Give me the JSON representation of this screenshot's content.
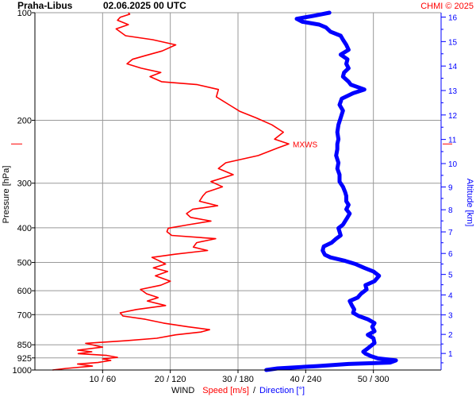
{
  "header": {
    "station": "Praha-Libus",
    "datetime": "02.06.2025 00 UTC",
    "credit": "CHMI © 2025"
  },
  "colors": {
    "speed": "#ff0000",
    "direction": "#0000ff",
    "grid": "#999999",
    "text": "#000000"
  },
  "chart_data": {
    "type": "line",
    "title": "Praha-Libus 02.06.2025 00 UTC",
    "ylabel": "Pressure [hPa]",
    "y2label": "Altitude [km]",
    "xlabel": {
      "prefix": "WIND",
      "speed": "Speed [m/s]",
      "separator": "/",
      "direction": "Direction [°]"
    },
    "y_scale": "log",
    "y_range": [
      1000,
      100
    ],
    "pressure_ticks": [
      "100",
      "200",
      "300",
      "400",
      "500",
      "600",
      "700",
      "850",
      "925",
      "1000"
    ],
    "x_range_speed": [
      0,
      60
    ],
    "x_range_direction": [
      0,
      360
    ],
    "x_ticks": [
      "10 / 60",
      "20 / 120",
      "30 / 180",
      "40 / 240",
      "50 / 300"
    ],
    "altitude_ticks": [
      "1",
      "2",
      "3",
      "4",
      "5",
      "6",
      "7",
      "8",
      "9",
      "10",
      "11",
      "12",
      "13",
      "14",
      "15",
      "16"
    ],
    "max_wind": {
      "label": "MXWS",
      "pressure": 233,
      "speed": 37.5
    },
    "series": [
      {
        "name": "Speed [m/s]",
        "unit": "m/s",
        "points": [
          [
            1000,
            2.6
          ],
          [
            990,
            4.6
          ],
          [
            975,
            8.5
          ],
          [
            962,
            6.3
          ],
          [
            953,
            9.3
          ],
          [
            940,
            11.2
          ],
          [
            931,
            10.0
          ],
          [
            922,
            12.2
          ],
          [
            910,
            10.6
          ],
          [
            900,
            6.4
          ],
          [
            889,
            8.4
          ],
          [
            880,
            6.3
          ],
          [
            863,
            10.0
          ],
          [
            842,
            7.5
          ],
          [
            828,
            13.5
          ],
          [
            815,
            18.0
          ],
          [
            797,
            20.8
          ],
          [
            783,
            24.5
          ],
          [
            771,
            25.8
          ],
          [
            757,
            22.6
          ],
          [
            739,
            19.0
          ],
          [
            721,
            16.3
          ],
          [
            706,
            13.0
          ],
          [
            692,
            12.6
          ],
          [
            677,
            15.0
          ],
          [
            660,
            19.3
          ],
          [
            641,
            16.6
          ],
          [
            627,
            18.2
          ],
          [
            612,
            16.5
          ],
          [
            595,
            15.6
          ],
          [
            579,
            18.6
          ],
          [
            564,
            20.0
          ],
          [
            545,
            17.8
          ],
          [
            530,
            19.6
          ],
          [
            518,
            17.5
          ],
          [
            505,
            19.3
          ],
          [
            495,
            18.4
          ],
          [
            484,
            17.3
          ],
          [
            474,
            20.8
          ],
          [
            463,
            25.5
          ],
          [
            453,
            23.4
          ],
          [
            440,
            23.9
          ],
          [
            429,
            26.7
          ],
          [
            420,
            20.2
          ],
          [
            410,
            19.5
          ],
          [
            401,
            19.7
          ],
          [
            392,
            22.7
          ],
          [
            383,
            26.0
          ],
          [
            374,
            23.0
          ],
          [
            365,
            22.4
          ],
          [
            355,
            23.3
          ],
          [
            347,
            27.0
          ],
          [
            337,
            24.3
          ],
          [
            326,
            24.8
          ],
          [
            318,
            25.3
          ],
          [
            307,
            27.7
          ],
          [
            297,
            26.0
          ],
          [
            284,
            29.3
          ],
          [
            273,
            27.1
          ],
          [
            263,
            28.2
          ],
          [
            251,
            33.0
          ],
          [
            239,
            35.9
          ],
          [
            233,
            37.5
          ],
          [
            226,
            35.4
          ],
          [
            216,
            36.7
          ],
          [
            206,
            35.0
          ],
          [
            197,
            32.7
          ],
          [
            189,
            30.3
          ],
          [
            181,
            28.7
          ],
          [
            172,
            26.8
          ],
          [
            164,
            27.1
          ],
          [
            159,
            24.0
          ],
          [
            156,
            18.7
          ],
          [
            151,
            17.0
          ],
          [
            147,
            18.6
          ],
          [
            143,
            15.7
          ],
          [
            139,
            13.6
          ],
          [
            135,
            14.4
          ],
          [
            132,
            16.2
          ],
          [
            128,
            18.8
          ],
          [
            123,
            20.8
          ],
          [
            119,
            17.4
          ],
          [
            116,
            13.4
          ],
          [
            111,
            12.0
          ],
          [
            108,
            13.8
          ],
          [
            105,
            12.2
          ],
          [
            103,
            12.6
          ],
          [
            101,
            14.0
          ],
          [
            100,
            13.8
          ]
        ]
      },
      {
        "name": "Direction [°]",
        "unit": "deg",
        "points": [
          [
            1000,
            205
          ],
          [
            990,
            215
          ],
          [
            975,
            250
          ],
          [
            962,
            278
          ],
          [
            953,
            315
          ],
          [
            940,
            320
          ],
          [
            928,
            304
          ],
          [
            915,
            298
          ],
          [
            900,
            293
          ],
          [
            889,
            291
          ],
          [
            875,
            294
          ],
          [
            860,
            297
          ],
          [
            840,
            301
          ],
          [
            815,
            300
          ],
          [
            797,
            295
          ],
          [
            779,
            301
          ],
          [
            757,
            299
          ],
          [
            739,
            301
          ],
          [
            721,
            295
          ],
          [
            706,
            287
          ],
          [
            692,
            282
          ],
          [
            677,
            283
          ],
          [
            660,
            281
          ],
          [
            641,
            279
          ],
          [
            627,
            286
          ],
          [
            612,
            289
          ],
          [
            595,
            294
          ],
          [
            579,
            293
          ],
          [
            564,
            301
          ],
          [
            545,
            305
          ],
          [
            530,
            300
          ],
          [
            518,
            292
          ],
          [
            505,
            284
          ],
          [
            495,
            275
          ],
          [
            484,
            262
          ],
          [
            476,
            257
          ],
          [
            463,
            255
          ],
          [
            451,
            256
          ],
          [
            440,
            263
          ],
          [
            429,
            267
          ],
          [
            420,
            271
          ],
          [
            410,
            270
          ],
          [
            401,
            269
          ],
          [
            392,
            273
          ],
          [
            383,
            275
          ],
          [
            374,
            277
          ],
          [
            365,
            279
          ],
          [
            355,
            276
          ],
          [
            345,
            278
          ],
          [
            337,
            276
          ],
          [
            326,
            276
          ],
          [
            318,
            275
          ],
          [
            307,
            273
          ],
          [
            297,
            270
          ],
          [
            284,
            270
          ],
          [
            273,
            268
          ],
          [
            263,
            269
          ],
          [
            251,
            267
          ],
          [
            241,
            268
          ],
          [
            233,
            268
          ],
          [
            226,
            269
          ],
          [
            216,
            268
          ],
          [
            206,
            269
          ],
          [
            197,
            271
          ],
          [
            188,
            273
          ],
          [
            181,
            270
          ],
          [
            174,
            272
          ],
          [
            168,
            282
          ],
          [
            164,
            292
          ],
          [
            159,
            280
          ],
          [
            156,
            278
          ],
          [
            151,
            273
          ],
          [
            147,
            274
          ],
          [
            143,
            278
          ],
          [
            139,
            276
          ],
          [
            135,
            277
          ],
          [
            131,
            271
          ],
          [
            127,
            278
          ],
          [
            123,
            276
          ],
          [
            119,
            273
          ],
          [
            116,
            271
          ],
          [
            113,
            262
          ],
          [
            110,
            258
          ],
          [
            108,
            252
          ],
          [
            106,
            237
          ],
          [
            104,
            232
          ],
          [
            102,
            247
          ],
          [
            100,
            261
          ]
        ]
      }
    ]
  }
}
